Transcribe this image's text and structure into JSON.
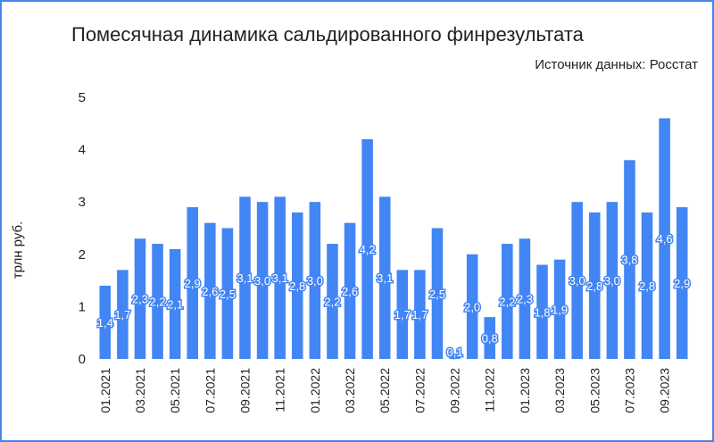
{
  "chart_data": {
    "type": "bar",
    "title": "Помесячная динамика сальдированного финрезультата",
    "subtitle": "Источник данных: Росстат",
    "ylabel": "трлн руб.",
    "xlabel": "",
    "ylim": [
      0,
      5
    ],
    "yticks": [
      0,
      1,
      2,
      3,
      4,
      5
    ],
    "grid": false,
    "legend": "none",
    "color": "#4285f4",
    "categories": [
      "01.2021",
      "02.2021",
      "03.2021",
      "04.2021",
      "05.2021",
      "06.2021",
      "07.2021",
      "08.2021",
      "09.2021",
      "10.2021",
      "11.2021",
      "12.2021",
      "01.2022",
      "02.2022",
      "03.2022",
      "04.2022",
      "05.2022",
      "06.2022",
      "07.2022",
      "08.2022",
      "09.2022",
      "10.2022",
      "11.2022",
      "12.2022",
      "01.2023",
      "02.2023",
      "03.2023",
      "04.2023",
      "05.2023",
      "06.2023",
      "07.2023",
      "08.2023",
      "09.2023",
      "10.2023"
    ],
    "tick_labels": [
      "01.2021",
      "",
      "03.2021",
      "",
      "05.2021",
      "",
      "07.2021",
      "",
      "09.2021",
      "",
      "11.2021",
      "",
      "01.2022",
      "",
      "03.2022",
      "",
      "05.2022",
      "",
      "07.2022",
      "",
      "09.2022",
      "",
      "11.2022",
      "",
      "01.2023",
      "",
      "03.2023",
      "",
      "05.2023",
      "",
      "07.2023",
      "",
      "09.2023",
      ""
    ],
    "values": [
      1.4,
      1.7,
      2.3,
      2.2,
      2.1,
      2.9,
      2.6,
      2.5,
      3.1,
      3.0,
      3.1,
      2.8,
      3.0,
      2.2,
      2.6,
      4.2,
      3.1,
      1.7,
      1.7,
      2.5,
      0.1,
      2.0,
      0.8,
      2.2,
      2.3,
      1.8,
      1.9,
      3.0,
      2.8,
      3.0,
      3.8,
      2.8,
      4.6,
      2.9
    ],
    "data_labels": [
      "1,4",
      "1,7",
      "2,3",
      "2,2",
      "2,1",
      "2,9",
      "2,6",
      "2,5",
      "3,1",
      "3,0",
      "3,1",
      "2,8",
      "3,0",
      "2,2",
      "2,6",
      "4,2",
      "3,1",
      "1,7",
      "1,7",
      "2,5",
      "0,1",
      "2,0",
      "0,8",
      "2,2",
      "2,3",
      "1,8",
      "1,9",
      "3,0",
      "2,8",
      "3,0",
      "3,8",
      "2,8",
      "4,6",
      "2,9"
    ]
  }
}
